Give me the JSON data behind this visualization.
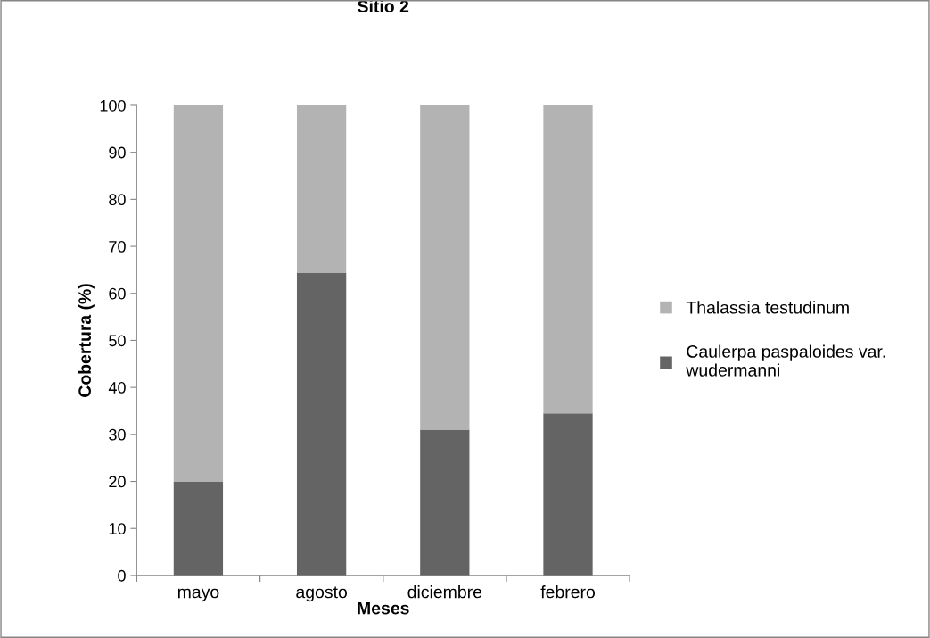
{
  "chart_data": {
    "type": "bar",
    "title": "Sitio 2",
    "xlabel": "Meses",
    "ylabel": "Cobertura (%)",
    "categories": [
      "mayo",
      "agosto",
      "diciembre",
      "febrero"
    ],
    "stacked": true,
    "series": [
      {
        "name": "Caulerpa paspaloides var. wudermanni",
        "color": "#646464",
        "values": [
          20,
          64.3,
          31,
          34.5
        ]
      },
      {
        "name": "Thalassia testudinum",
        "color": "#b3b3b3",
        "values": [
          80,
          35.7,
          69,
          65.5
        ]
      }
    ],
    "ylim": [
      0,
      100
    ],
    "yticks": [
      0,
      10,
      20,
      30,
      40,
      50,
      60,
      70,
      80,
      90,
      100
    ],
    "grid": false,
    "legend": "right"
  }
}
